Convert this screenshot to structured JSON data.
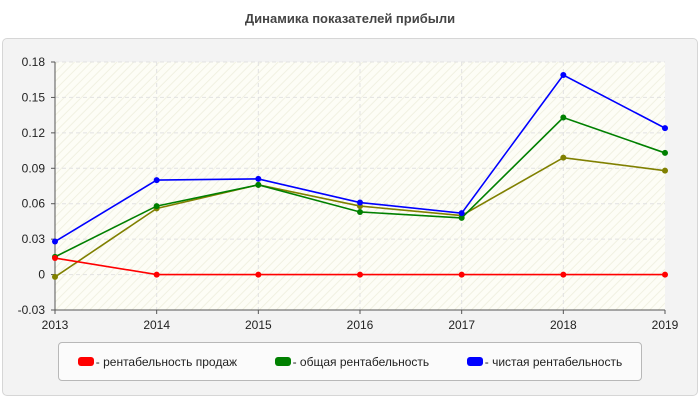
{
  "chart_data": {
    "type": "line",
    "title": "Динамика показателей прибыли",
    "x": [
      "2013",
      "2014",
      "2015",
      "2016",
      "2017",
      "2018",
      "2019"
    ],
    "ylim": [
      -0.03,
      0.18
    ],
    "yticks": [
      "0.18",
      "0.15",
      "0.12",
      "0.09",
      "0.06",
      "0.03",
      "0",
      "-0.03"
    ],
    "grid": true,
    "legend_position": "bottom",
    "series": [
      {
        "name": "- рентабельность продаж",
        "color": "#ff0000",
        "values": [
          0.014,
          0.0,
          0.0,
          0.0,
          0.0,
          0.0,
          0.0
        ]
      },
      {
        "name": "- общая рентабельность",
        "color": "#008000",
        "values": [
          0.015,
          0.058,
          0.076,
          0.053,
          0.048,
          0.133,
          0.103
        ]
      },
      {
        "name": "- чистая рентабельность",
        "color": "#0000ff",
        "values": [
          0.028,
          0.08,
          0.081,
          0.061,
          0.052,
          0.169,
          0.124
        ]
      },
      {
        "name": "",
        "color": "#808000",
        "values": [
          -0.002,
          0.056,
          0.076,
          0.058,
          0.05,
          0.099,
          0.088
        ]
      }
    ]
  }
}
